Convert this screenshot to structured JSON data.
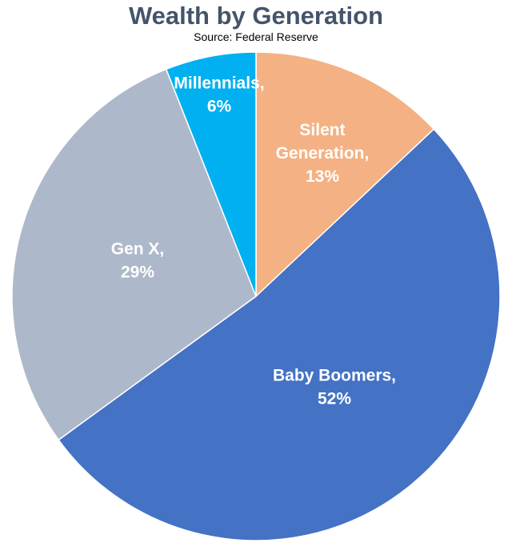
{
  "chart_data": {
    "type": "pie",
    "title": "Wealth by Generation",
    "subtitle": "Source: Federal Reserve",
    "start_angle_deg": 0,
    "direction": "clockwise",
    "slices": [
      {
        "name": "Silent Generation",
        "value": 13,
        "label": "13%",
        "color": "#f4b183",
        "text_color": "#ffffff"
      },
      {
        "name": "Baby Boomers",
        "value": 52,
        "label": "52%",
        "color": "#4472c4",
        "text_color": "#ffffff"
      },
      {
        "name": "Gen X",
        "value": 29,
        "label": "29%",
        "color": "#adb9ca",
        "text_color": "#ffffff"
      },
      {
        "name": "Millennials",
        "value": 6,
        "label": "6%",
        "color": "#00b0f0",
        "text_color": "#ffffff"
      }
    ]
  }
}
